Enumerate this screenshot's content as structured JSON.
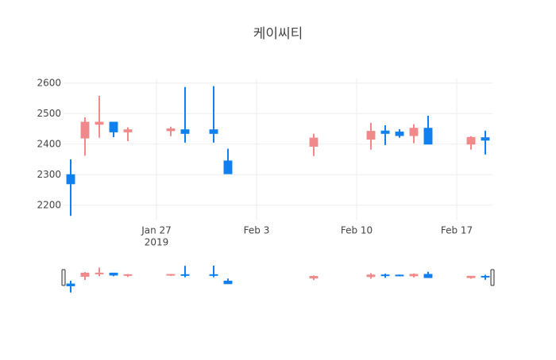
{
  "chart_data": {
    "type": "candlestick",
    "title": "케이씨티",
    "x": [
      "2019-01-21",
      "2019-01-22",
      "2019-01-23",
      "2019-01-24",
      "2019-01-25",
      "2019-01-28",
      "2019-01-29",
      "2019-01-31",
      "2019-02-01",
      "2019-02-07",
      "2019-02-11",
      "2019-02-12",
      "2019-02-13",
      "2019-02-14",
      "2019-02-15",
      "2019-02-18",
      "2019-02-19"
    ],
    "open": [
      2300,
      2420,
      2465,
      2472,
      2440,
      2444,
      2447,
      2447,
      2345,
      2393,
      2416,
      2443,
      2440,
      2428,
      2452,
      2400,
      2421
    ],
    "high": [
      2350,
      2488,
      2558,
      2472,
      2455,
      2457,
      2587,
      2590,
      2385,
      2434,
      2470,
      2462,
      2449,
      2465,
      2493,
      2426,
      2444
    ],
    "low": [
      2165,
      2362,
      2421,
      2423,
      2410,
      2426,
      2405,
      2405,
      2302,
      2361,
      2382,
      2397,
      2421,
      2403,
      2400,
      2382,
      2366
    ],
    "close": [
      2270,
      2472,
      2472,
      2440,
      2447,
      2450,
      2435,
      2435,
      2303,
      2420,
      2442,
      2435,
      2428,
      2452,
      2400,
      2422,
      2413
    ],
    "increasing_color": "#f08a8a",
    "decreasing_color": "#1080f0",
    "xlim": [
      "2019-01-20T12:00",
      "2019-02-19T12:00"
    ],
    "xticks": [
      {
        "value": "2019-01-27",
        "label": [
          "Jan 27",
          "2019"
        ]
      },
      {
        "value": "2019-02-03",
        "label": "Feb 3"
      },
      {
        "value": "2019-02-10",
        "label": "Feb 10"
      },
      {
        "value": "2019-02-17",
        "label": "Feb 17"
      }
    ],
    "ylim": [
      2150,
      2615
    ],
    "yticks": [
      2200,
      2300,
      2400,
      2500,
      2600
    ],
    "grid": true,
    "rangeslider": true
  }
}
